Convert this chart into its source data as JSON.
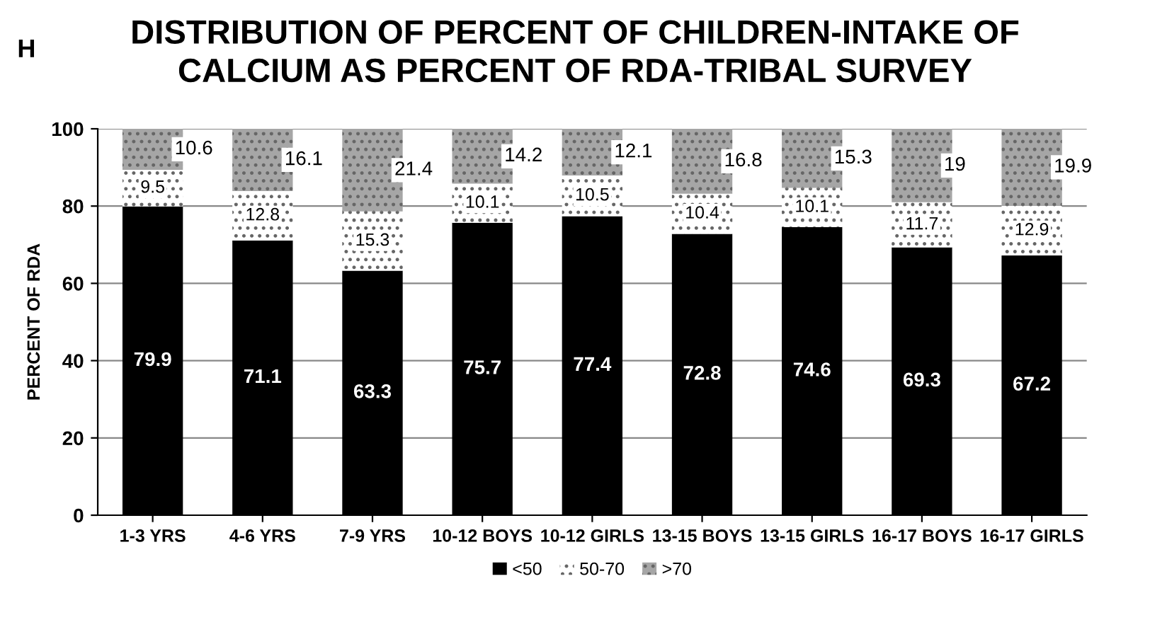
{
  "chart_data": {
    "type": "bar",
    "stacked": true,
    "title": "DISTRIBUTION OF PERCENT OF CHILDREN-INTAKE OF\nCALCIUM AS PERCENT OF RDA-TRIBAL SURVEY",
    "ylabel": "PERCENT OF RDA",
    "annotations": [
      "H"
    ],
    "categories": [
      "1-3 YRS",
      "4-6 YRS",
      "7-9 YRS",
      "10-12 BOYS",
      "10-12 GIRLS",
      "13-15 BOYS",
      "13-15 GIRLS",
      "16-17 BOYS",
      "16-17 GIRLS"
    ],
    "series": [
      {
        "name": "<50",
        "color": "#000000",
        "values": [
          79.9,
          71.1,
          63.3,
          75.7,
          77.4,
          72.8,
          74.6,
          69.3,
          67.2
        ]
      },
      {
        "name": "50-70",
        "color": "#ffffff",
        "values": [
          9.5,
          12.8,
          15.3,
          10.1,
          10.5,
          10.4,
          10.1,
          11.7,
          12.9
        ]
      },
      {
        "name": ">70",
        "color": "#a6a6a6",
        "values": [
          10.6,
          16.1,
          21.4,
          14.2,
          12.1,
          16.8,
          15.3,
          19,
          19.9
        ]
      }
    ],
    "ylim": [
      0,
      100
    ],
    "yticks": [
      0,
      20,
      40,
      60,
      80,
      100
    ],
    "grid": "y",
    "legend": "bottom",
    "data_labels": true
  }
}
